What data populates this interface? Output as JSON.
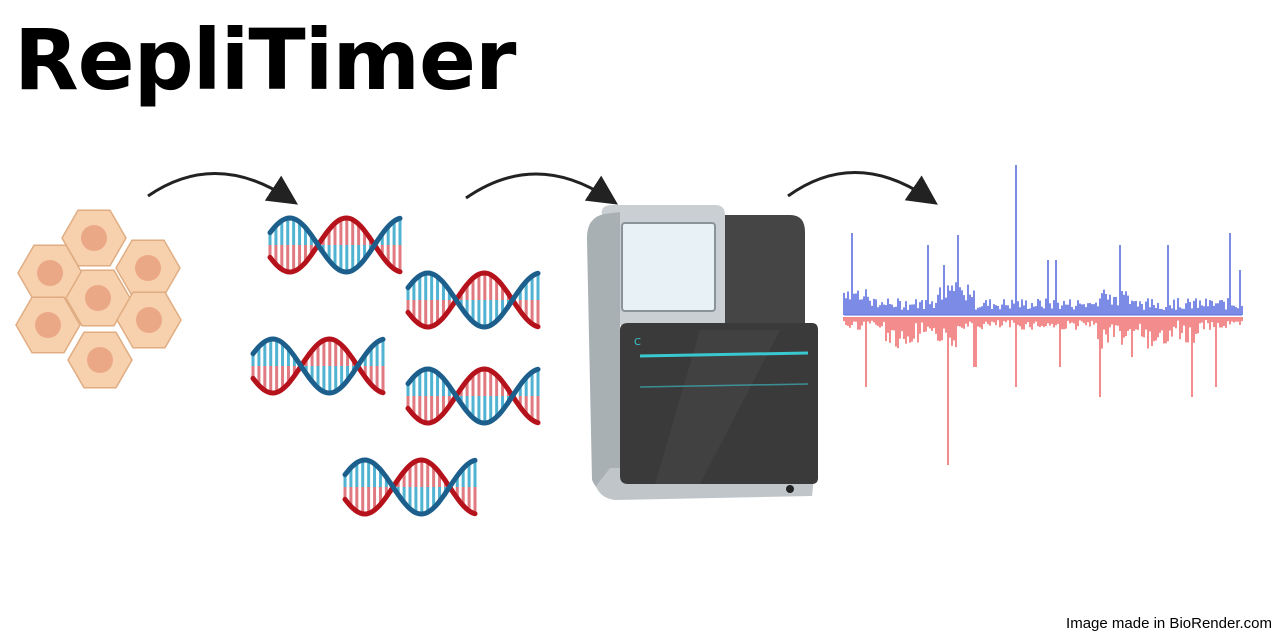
{
  "title": "RepliTimer",
  "credit": "Image made in BioRender.com",
  "colors": {
    "cell_fill": "#f7d0ad",
    "cell_stroke": "#e0ad82",
    "nucleus": "#eba886",
    "dna_red": "#b5121b",
    "dna_blue": "#1d5f8c",
    "rung_red": "#e07a80",
    "rung_blue": "#4fb3d1",
    "signal_up": "#5b6fe0",
    "signal_down": "#f07070",
    "sequencer_screen": "#e8f1f5",
    "sequencer_panel": "#3a3a3a",
    "sequencer_accent": "#3ac8d0"
  },
  "icons": [
    "cell-cluster-icon",
    "dna-strands-icon",
    "sequencer-icon",
    "replication-signal-icon",
    "arrow-icon"
  ]
}
